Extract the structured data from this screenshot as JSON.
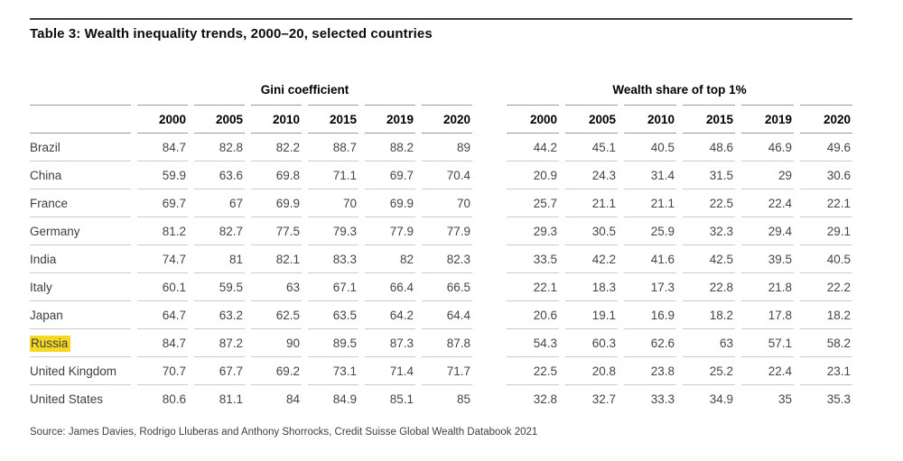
{
  "colors": {
    "highlight": "#f4d824",
    "title_rule": "#3d3d3d",
    "header_rule": "#9a9a9a",
    "row_rule": "#cccccc"
  },
  "chart_data": {
    "type": "table",
    "title": "Table 3: Wealth inequality trends, 2000–20, selected countries",
    "column_groups": [
      {
        "label": "Gini coefficient",
        "years": [
          "2000",
          "2005",
          "2010",
          "2015",
          "2019",
          "2020"
        ]
      },
      {
        "label": "Wealth share of top 1%",
        "years": [
          "2000",
          "2005",
          "2010",
          "2015",
          "2019",
          "2020"
        ]
      }
    ],
    "rows": [
      {
        "country": "Brazil",
        "highlight": false,
        "gini": [
          84.7,
          82.8,
          82.2,
          88.7,
          88.2,
          89
        ],
        "top1": [
          44.2,
          45.1,
          40.5,
          48.6,
          46.9,
          49.6
        ]
      },
      {
        "country": "China",
        "highlight": false,
        "gini": [
          59.9,
          63.6,
          69.8,
          71.1,
          69.7,
          70.4
        ],
        "top1": [
          20.9,
          24.3,
          31.4,
          31.5,
          29,
          30.6
        ]
      },
      {
        "country": "France",
        "highlight": false,
        "gini": [
          69.7,
          67,
          69.9,
          70,
          69.9,
          70
        ],
        "top1": [
          25.7,
          21.1,
          21.1,
          22.5,
          22.4,
          22.1
        ]
      },
      {
        "country": "Germany",
        "highlight": false,
        "gini": [
          81.2,
          82.7,
          77.5,
          79.3,
          77.9,
          77.9
        ],
        "top1": [
          29.3,
          30.5,
          25.9,
          32.3,
          29.4,
          29.1
        ]
      },
      {
        "country": "India",
        "highlight": false,
        "gini": [
          74.7,
          81,
          82.1,
          83.3,
          82,
          82.3
        ],
        "top1": [
          33.5,
          42.2,
          41.6,
          42.5,
          39.5,
          40.5
        ]
      },
      {
        "country": "Italy",
        "highlight": false,
        "gini": [
          60.1,
          59.5,
          63,
          67.1,
          66.4,
          66.5
        ],
        "top1": [
          22.1,
          18.3,
          17.3,
          22.8,
          21.8,
          22.2
        ]
      },
      {
        "country": "Japan",
        "highlight": false,
        "gini": [
          64.7,
          63.2,
          62.5,
          63.5,
          64.2,
          64.4
        ],
        "top1": [
          20.6,
          19.1,
          16.9,
          18.2,
          17.8,
          18.2
        ]
      },
      {
        "country": "Russia",
        "highlight": true,
        "gini": [
          84.7,
          87.2,
          90,
          89.5,
          87.3,
          87.8
        ],
        "top1": [
          54.3,
          60.3,
          62.6,
          63,
          57.1,
          58.2
        ]
      },
      {
        "country": "United Kingdom",
        "highlight": false,
        "gini": [
          70.7,
          67.7,
          69.2,
          73.1,
          71.4,
          71.7
        ],
        "top1": [
          22.5,
          20.8,
          23.8,
          25.2,
          22.4,
          23.1
        ]
      },
      {
        "country": "United States",
        "highlight": false,
        "gini": [
          80.6,
          81.1,
          84,
          84.9,
          85.1,
          85
        ],
        "top1": [
          32.8,
          32.7,
          33.3,
          34.9,
          35,
          35.3
        ]
      }
    ],
    "highlighted_row": "Russia",
    "source": "Source: James Davies, Rodrigo Lluberas and Anthony Shorrocks, Credit Suisse Global Wealth Databook 2021"
  }
}
